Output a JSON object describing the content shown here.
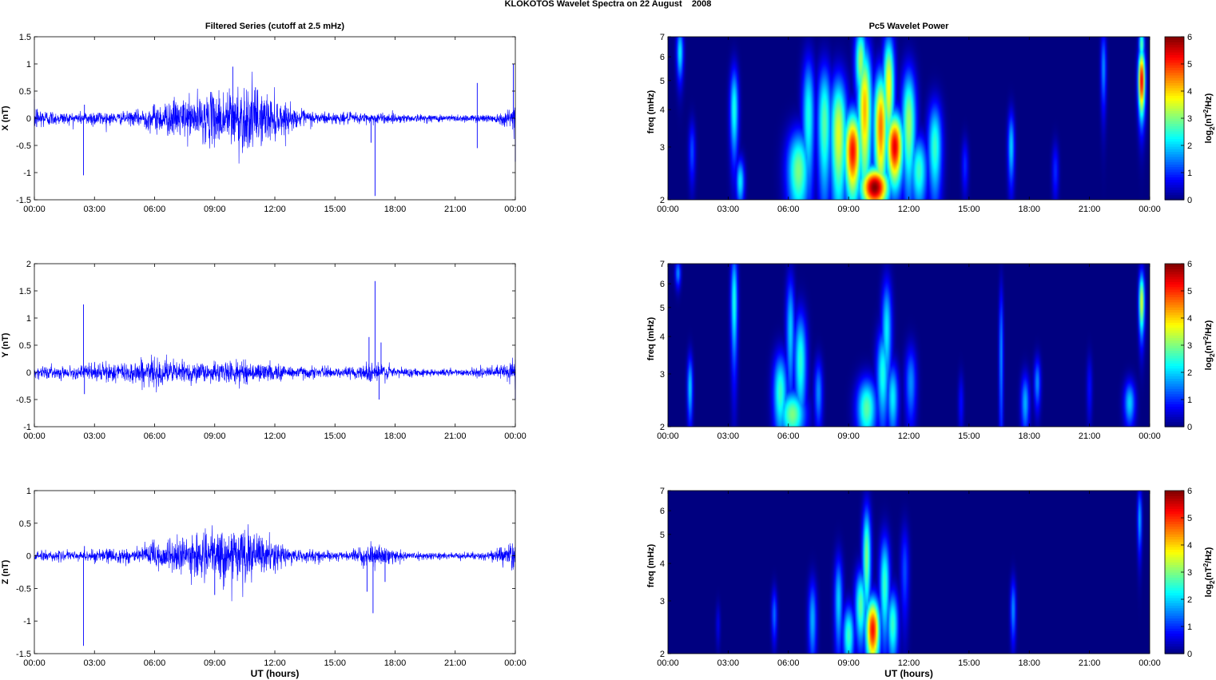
{
  "figure": {
    "suptitle": "KLOKOTOS Wavelet Spectra on 22 August    2008",
    "left_title": "Filtered Series (cutoff at 2.5 mHz)",
    "right_title": "Pc5 Wavelet Power"
  },
  "chart_data": [
    {
      "type": "line",
      "panel": "X filtered series",
      "title": "Filtered Series (cutoff at 2.5 mHz)",
      "ylabel": "X (nT)",
      "xlabel": "",
      "ylim": [
        -1.5,
        1.5
      ],
      "yticks": [
        "-1.5",
        "-1",
        "-0.5",
        "0",
        "0.5",
        "1",
        "1.5"
      ],
      "xticks": [
        "00:00",
        "03:00",
        "06:00",
        "09:00",
        "12:00",
        "15:00",
        "18:00",
        "21:00",
        "00:00"
      ],
      "xlim_hours": [
        0,
        24
      ],
      "color": "#0000ff",
      "envelope": {
        "hours": [
          0,
          0.5,
          1,
          2,
          3,
          4,
          5,
          6,
          7,
          8,
          9,
          10,
          10.5,
          11,
          12,
          13,
          14,
          15,
          16,
          17,
          18,
          19,
          20,
          21,
          22,
          23,
          23.8,
          24
        ],
        "amplitude": [
          0.3,
          0.2,
          0.15,
          0.12,
          0.18,
          0.12,
          0.15,
          0.3,
          0.4,
          0.45,
          0.55,
          0.7,
          0.75,
          0.65,
          0.45,
          0.2,
          0.15,
          0.12,
          0.12,
          0.12,
          0.1,
          0.08,
          0.08,
          0.08,
          0.08,
          0.1,
          0.2,
          0.5
        ]
      },
      "spikes": [
        {
          "hour": 2.45,
          "value": -1.05
        },
        {
          "hour": 2.5,
          "value": 0.25
        },
        {
          "hour": 9.9,
          "value": 0.95
        },
        {
          "hour": 17.0,
          "value": -1.43
        },
        {
          "hour": 16.8,
          "value": -0.45
        },
        {
          "hour": 22.1,
          "value": 0.65
        },
        {
          "hour": 22.1,
          "value": -0.55
        },
        {
          "hour": 23.9,
          "value": 1.0
        },
        {
          "hour": 24.0,
          "value": -0.8
        }
      ]
    },
    {
      "type": "line",
      "panel": "Y filtered series",
      "ylabel": "Y (nT)",
      "xlabel": "",
      "ylim": [
        -1,
        2
      ],
      "yticks": [
        "-1",
        "-0.5",
        "0",
        "0.5",
        "1",
        "1.5",
        "2"
      ],
      "xticks": [
        "00:00",
        "03:00",
        "06:00",
        "09:00",
        "12:00",
        "15:00",
        "18:00",
        "21:00",
        "00:00"
      ],
      "xlim_hours": [
        0,
        24
      ],
      "color": "#0000ff",
      "envelope": {
        "hours": [
          0,
          1,
          2,
          3,
          4,
          5,
          6,
          7,
          8,
          9,
          10,
          11,
          12,
          13,
          14,
          15,
          16,
          17,
          18,
          19,
          20,
          21,
          22,
          23,
          24
        ],
        "amplitude": [
          0.15,
          0.12,
          0.12,
          0.2,
          0.2,
          0.25,
          0.3,
          0.25,
          0.22,
          0.2,
          0.25,
          0.2,
          0.18,
          0.15,
          0.12,
          0.1,
          0.12,
          0.25,
          0.12,
          0.08,
          0.08,
          0.08,
          0.08,
          0.12,
          0.35
        ]
      },
      "spikes": [
        {
          "hour": 2.45,
          "value": 1.25
        },
        {
          "hour": 2.5,
          "value": -0.4
        },
        {
          "hour": 16.7,
          "value": 0.65
        },
        {
          "hour": 17.0,
          "value": 1.68
        },
        {
          "hour": 17.3,
          "value": 0.55
        },
        {
          "hour": 17.2,
          "value": -0.5
        },
        {
          "hour": 24.0,
          "value": -0.5
        }
      ]
    },
    {
      "type": "line",
      "panel": "Z filtered series",
      "ylabel": "Z (nT)",
      "xlabel": "UT (hours)",
      "ylim": [
        -1.5,
        1
      ],
      "yticks": [
        "-1.5",
        "-1",
        "-0.5",
        "0",
        "0.5",
        "1"
      ],
      "xticks": [
        "00:00",
        "03:00",
        "06:00",
        "09:00",
        "12:00",
        "15:00",
        "18:00",
        "21:00",
        "00:00"
      ],
      "xlim_hours": [
        0,
        24
      ],
      "color": "#0000ff",
      "envelope": {
        "hours": [
          0,
          1,
          2,
          3,
          4,
          5,
          6,
          7,
          8,
          9,
          10,
          10.5,
          11,
          12,
          13,
          14,
          15,
          16,
          17,
          18,
          19,
          20,
          21,
          22,
          23,
          24
        ],
        "amplitude": [
          0.1,
          0.08,
          0.08,
          0.12,
          0.12,
          0.15,
          0.25,
          0.3,
          0.35,
          0.4,
          0.5,
          0.5,
          0.4,
          0.25,
          0.12,
          0.1,
          0.08,
          0.1,
          0.2,
          0.1,
          0.06,
          0.06,
          0.06,
          0.06,
          0.1,
          0.3
        ]
      },
      "spikes": [
        {
          "hour": 2.45,
          "value": -1.38
        },
        {
          "hour": 2.5,
          "value": 0.15
        },
        {
          "hour": 16.9,
          "value": -0.88
        },
        {
          "hour": 16.6,
          "value": -0.55
        },
        {
          "hour": 17.5,
          "value": -0.4
        },
        {
          "hour": 9.0,
          "value": -0.6
        }
      ]
    },
    {
      "type": "heatmap",
      "panel": "X wavelet power",
      "title": "Pc5 Wavelet Power",
      "ylabel": "freq (mHz)",
      "xlabel": "",
      "ylim": [
        2,
        7
      ],
      "yscale": "log",
      "yticks": [
        2,
        3,
        4,
        5,
        6,
        7
      ],
      "xticks": [
        "00:00",
        "03:00",
        "06:00",
        "09:00",
        "12:00",
        "15:00",
        "18:00",
        "21:00",
        "00:00"
      ],
      "xlim_hours": [
        0,
        24
      ],
      "colorbar": {
        "label": "log2(nT2/Hz)",
        "ticks": [
          "0",
          "1",
          "2",
          "3",
          "4",
          "5",
          "6"
        ],
        "range": [
          0,
          6
        ]
      },
      "blobs": [
        {
          "hour": 10.3,
          "freq": 2.2,
          "power": 6.0,
          "dh": 0.5,
          "df": 0.25
        },
        {
          "hour": 9.2,
          "freq": 2.9,
          "power": 5.2,
          "dh": 0.3,
          "df": 0.7
        },
        {
          "hour": 11.3,
          "freq": 3.0,
          "power": 5.4,
          "dh": 0.3,
          "df": 0.6
        },
        {
          "hour": 10.6,
          "freq": 3.5,
          "power": 4.6,
          "dh": 0.25,
          "df": 1.2
        },
        {
          "hour": 9.8,
          "freq": 4.0,
          "power": 4.2,
          "dh": 0.25,
          "df": 1.6
        },
        {
          "hour": 11.0,
          "freq": 4.8,
          "power": 3.8,
          "dh": 0.2,
          "df": 1.5
        },
        {
          "hour": 8.5,
          "freq": 3.3,
          "power": 3.6,
          "dh": 0.3,
          "df": 1.2
        },
        {
          "hour": 7.8,
          "freq": 3.6,
          "power": 2.8,
          "dh": 0.25,
          "df": 1.3
        },
        {
          "hour": 7.0,
          "freq": 3.8,
          "power": 2.4,
          "dh": 0.22,
          "df": 1.4
        },
        {
          "hour": 6.5,
          "freq": 2.5,
          "power": 3.0,
          "dh": 0.4,
          "df": 0.6
        },
        {
          "hour": 9.6,
          "freq": 5.8,
          "power": 3.2,
          "dh": 0.2,
          "df": 1.2
        },
        {
          "hour": 12.0,
          "freq": 3.6,
          "power": 3.2,
          "dh": 0.25,
          "df": 1.2
        },
        {
          "hour": 13.3,
          "freq": 3.0,
          "power": 2.6,
          "dh": 0.25,
          "df": 0.8
        },
        {
          "hour": 12.5,
          "freq": 2.5,
          "power": 2.6,
          "dh": 0.3,
          "df": 0.5
        },
        {
          "hour": 23.6,
          "freq": 5.0,
          "power": 5.4,
          "dh": 0.12,
          "df": 0.9
        },
        {
          "hour": 23.6,
          "freq": 6.6,
          "power": 2.8,
          "dh": 0.1,
          "df": 0.6
        },
        {
          "hour": 3.3,
          "freq": 4.0,
          "power": 2.4,
          "dh": 0.15,
          "df": 1.0
        },
        {
          "hour": 3.6,
          "freq": 2.3,
          "power": 2.2,
          "dh": 0.15,
          "df": 0.3
        },
        {
          "hour": 0.6,
          "freq": 6.2,
          "power": 2.2,
          "dh": 0.12,
          "df": 0.9
        },
        {
          "hour": 17.1,
          "freq": 3.0,
          "power": 2.0,
          "dh": 0.12,
          "df": 0.6
        },
        {
          "hour": 21.7,
          "freq": 5.5,
          "power": 1.6,
          "dh": 0.1,
          "df": 1.2
        },
        {
          "hour": 14.8,
          "freq": 2.6,
          "power": 1.0,
          "dh": 0.12,
          "df": 0.4
        },
        {
          "hour": 19.3,
          "freq": 2.5,
          "power": 1.0,
          "dh": 0.12,
          "df": 0.4
        },
        {
          "hour": 1.2,
          "freq": 2.9,
          "power": 1.2,
          "dh": 0.12,
          "df": 0.5
        }
      ]
    },
    {
      "type": "heatmap",
      "panel": "Y wavelet power",
      "ylabel": "freq (mHz)",
      "xlabel": "",
      "ylim": [
        2,
        7
      ],
      "yscale": "log",
      "yticks": [
        2,
        3,
        4,
        5,
        6,
        7
      ],
      "xticks": [
        "00:00",
        "03:00",
        "06:00",
        "09:00",
        "12:00",
        "15:00",
        "18:00",
        "21:00",
        "00:00"
      ],
      "xlim_hours": [
        0,
        24
      ],
      "colorbar": {
        "label": "log2(nT2/Hz)",
        "ticks": [
          "0",
          "1",
          "2",
          "3",
          "4",
          "5",
          "6"
        ],
        "range": [
          0,
          6
        ]
      },
      "blobs": [
        {
          "hour": 6.2,
          "freq": 2.2,
          "power": 3.0,
          "dh": 0.45,
          "df": 0.3
        },
        {
          "hour": 5.6,
          "freq": 2.6,
          "power": 2.6,
          "dh": 0.25,
          "df": 0.6
        },
        {
          "hour": 6.6,
          "freq": 3.3,
          "power": 2.5,
          "dh": 0.22,
          "df": 1.0
        },
        {
          "hour": 6.1,
          "freq": 4.2,
          "power": 2.0,
          "dh": 0.15,
          "df": 1.4
        },
        {
          "hour": 9.9,
          "freq": 2.3,
          "power": 2.8,
          "dh": 0.35,
          "df": 0.4
        },
        {
          "hour": 10.7,
          "freq": 3.0,
          "power": 2.4,
          "dh": 0.22,
          "df": 0.8
        },
        {
          "hour": 10.9,
          "freq": 4.2,
          "power": 2.2,
          "dh": 0.18,
          "df": 1.3
        },
        {
          "hour": 11.2,
          "freq": 2.5,
          "power": 2.2,
          "dh": 0.2,
          "df": 0.5
        },
        {
          "hour": 12.1,
          "freq": 2.8,
          "power": 1.6,
          "dh": 0.2,
          "df": 0.6
        },
        {
          "hour": 7.5,
          "freq": 2.6,
          "power": 1.6,
          "dh": 0.15,
          "df": 0.5
        },
        {
          "hour": 1.1,
          "freq": 2.7,
          "power": 2.0,
          "dh": 0.1,
          "df": 0.5
        },
        {
          "hour": 3.3,
          "freq": 5.2,
          "power": 2.4,
          "dh": 0.12,
          "df": 1.6
        },
        {
          "hour": 23.6,
          "freq": 5.2,
          "power": 3.6,
          "dh": 0.1,
          "df": 0.9
        },
        {
          "hour": 23.0,
          "freq": 2.4,
          "power": 2.0,
          "dh": 0.2,
          "df": 0.3
        },
        {
          "hour": 17.8,
          "freq": 2.4,
          "power": 1.8,
          "dh": 0.15,
          "df": 0.4
        },
        {
          "hour": 18.4,
          "freq": 2.8,
          "power": 1.6,
          "dh": 0.12,
          "df": 0.4
        },
        {
          "hour": 16.6,
          "freq": 3.5,
          "power": 1.6,
          "dh": 0.08,
          "df": 1.5
        },
        {
          "hour": 0.5,
          "freq": 6.5,
          "power": 1.6,
          "dh": 0.1,
          "df": 0.5
        },
        {
          "hour": 21.0,
          "freq": 2.7,
          "power": 0.8,
          "dh": 0.1,
          "df": 0.5
        },
        {
          "hour": 14.6,
          "freq": 2.4,
          "power": 0.8,
          "dh": 0.1,
          "df": 0.4
        }
      ]
    },
    {
      "type": "heatmap",
      "panel": "Z wavelet power",
      "ylabel": "freq (mHz)",
      "xlabel": "UT (hours)",
      "ylim": [
        2,
        7
      ],
      "yscale": "log",
      "yticks": [
        2,
        3,
        4,
        5,
        6,
        7
      ],
      "xticks": [
        "00:00",
        "03:00",
        "06:00",
        "09:00",
        "12:00",
        "15:00",
        "18:00",
        "21:00",
        "00:00"
      ],
      "xlim_hours": [
        0,
        24
      ],
      "colorbar": {
        "label": "log2(nT2/Hz)",
        "ticks": [
          "0",
          "1",
          "2",
          "3",
          "4",
          "5",
          "6"
        ],
        "range": [
          0,
          6
        ]
      },
      "blobs": [
        {
          "hour": 10.2,
          "freq": 2.4,
          "power": 5.2,
          "dh": 0.25,
          "df": 0.45
        },
        {
          "hour": 9.6,
          "freq": 2.9,
          "power": 2.8,
          "dh": 0.2,
          "df": 0.6
        },
        {
          "hour": 9.9,
          "freq": 4.2,
          "power": 3.0,
          "dh": 0.15,
          "df": 1.3
        },
        {
          "hour": 10.8,
          "freq": 3.4,
          "power": 2.6,
          "dh": 0.18,
          "df": 1.0
        },
        {
          "hour": 11.2,
          "freq": 2.5,
          "power": 2.6,
          "dh": 0.2,
          "df": 0.5
        },
        {
          "hour": 9.0,
          "freq": 2.3,
          "power": 2.6,
          "dh": 0.2,
          "df": 0.4
        },
        {
          "hour": 8.5,
          "freq": 3.0,
          "power": 2.0,
          "dh": 0.15,
          "df": 0.8
        },
        {
          "hour": 7.2,
          "freq": 2.6,
          "power": 1.8,
          "dh": 0.15,
          "df": 0.6
        },
        {
          "hour": 5.3,
          "freq": 2.7,
          "power": 1.4,
          "dh": 0.1,
          "df": 0.4
        },
        {
          "hour": 17.2,
          "freq": 2.8,
          "power": 1.6,
          "dh": 0.1,
          "df": 0.5
        },
        {
          "hour": 23.5,
          "freq": 5.6,
          "power": 1.8,
          "dh": 0.08,
          "df": 1.0
        },
        {
          "hour": 11.8,
          "freq": 3.8,
          "power": 1.2,
          "dh": 0.15,
          "df": 1.0
        },
        {
          "hour": 2.5,
          "freq": 2.5,
          "power": 0.6,
          "dh": 0.08,
          "df": 0.3
        }
      ]
    }
  ]
}
